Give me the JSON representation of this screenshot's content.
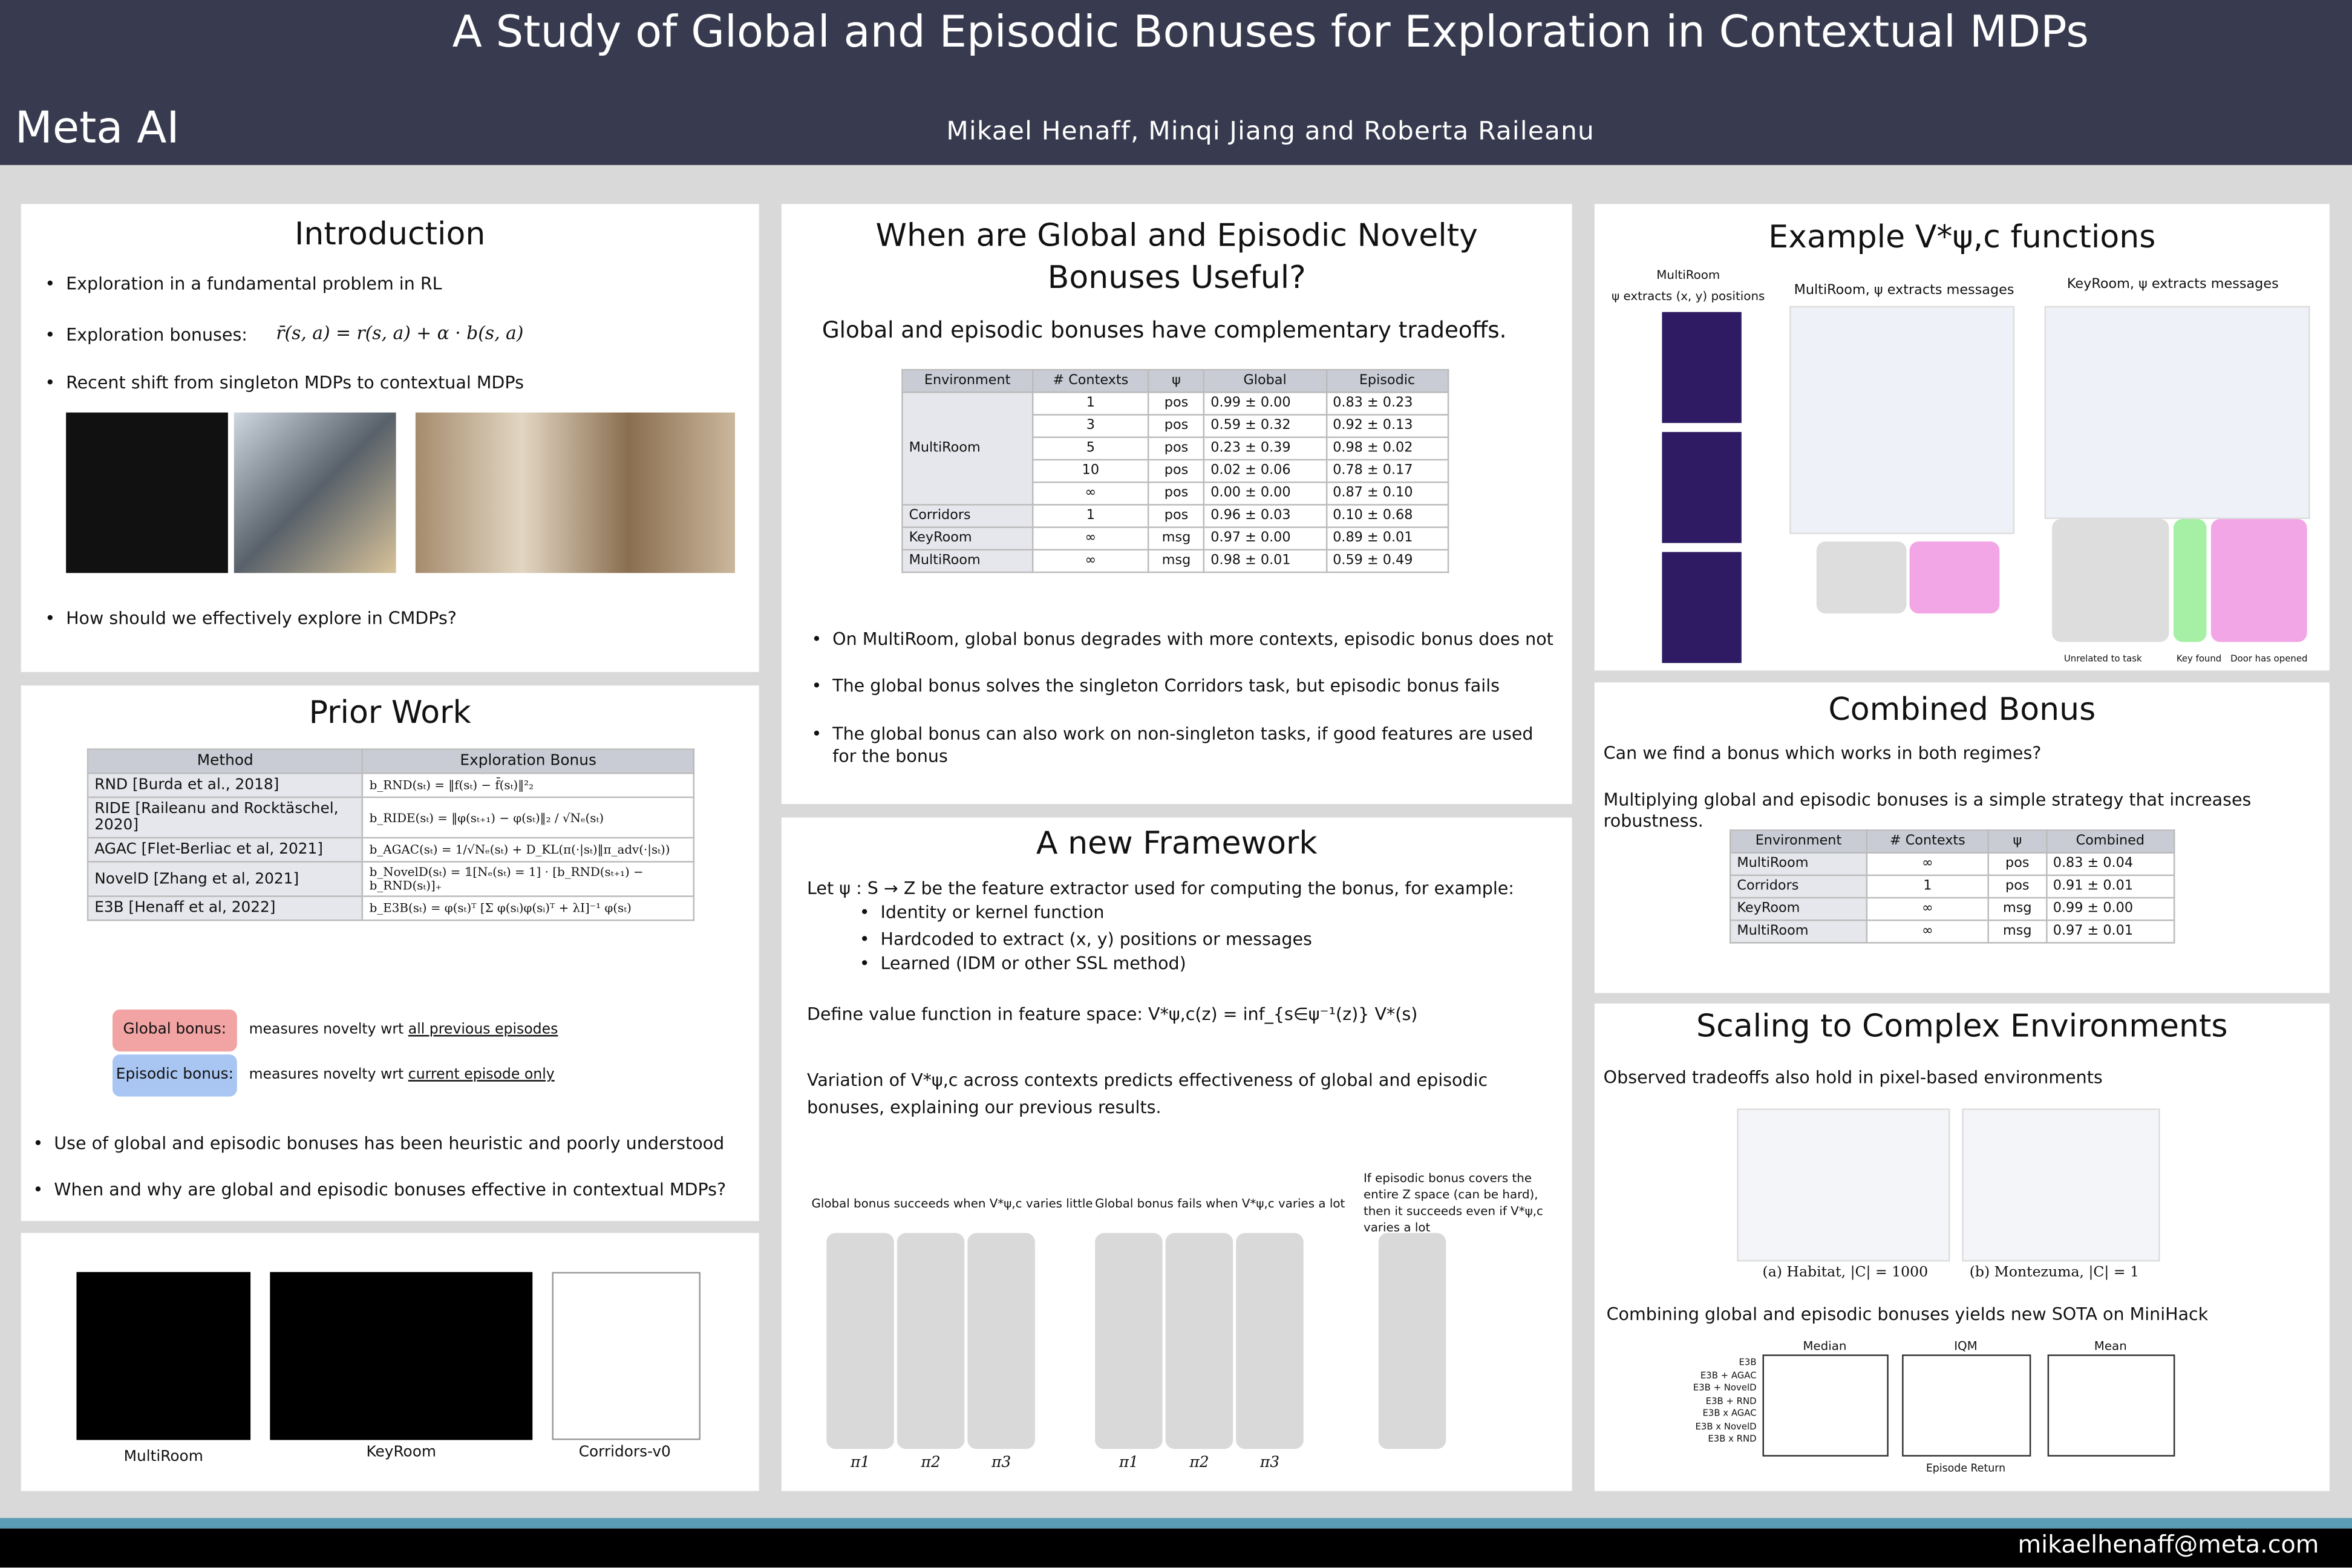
{
  "header": {
    "title": "A Study of Global and Episodic Bonuses for Exploration in Contextual MDPs",
    "logo": "Meta AI",
    "authors": "Mikael Henaff, Minqi Jiang and Roberta Raileanu"
  },
  "introduction": {
    "title": "Introduction",
    "bullets": [
      "Exploration in a fundamental problem in RL",
      "Exploration bonuses:",
      "Recent shift from singleton MDPs to contextual MDPs"
    ],
    "bonus_formula": "r̄(s, a) = r(s, a) + α · b(s, a)",
    "question": "How should we effectively explore in CMDPs?"
  },
  "prior_work": {
    "title": "Prior Work",
    "table": {
      "header": [
        "Method",
        "Exploration Bonus"
      ],
      "rows": [
        [
          "RND [Burda et al., 2018]",
          "b_RND(sₜ) = ‖f(sₜ) − f̄(sₜ)‖²₂"
        ],
        [
          "RIDE [Raileanu and Rocktäschel, 2020]",
          "b_RIDE(sₜ) = ‖φ(sₜ₊₁) − φ(sₜ)‖₂ / √Nₑ(sₜ)"
        ],
        [
          "AGAC [Flet-Berliac et al, 2021]",
          "b_AGAC(sₜ) = 1/√Nₑ(sₜ) + D_KL(π(·|sₜ)‖π_adv(·|sₜ))"
        ],
        [
          "NovelD [Zhang et al, 2021]",
          "b_NovelD(sₜ) = 𝟙[Nₑ(sₜ) = 1] · [b_RND(sₜ₊₁) − b_RND(sₜ)]₊"
        ],
        [
          "E3B [Henaff et al, 2022]",
          "b_E3B(sₜ) = φ(sₜ)ᵀ [Σ φ(sᵢ)φ(sᵢ)ᵀ + λI]⁻¹ φ(sₜ)"
        ]
      ]
    },
    "legend": [
      {
        "label": "Global bonus:",
        "text": "measures novelty wrt",
        "emphasis": "all previous episodes"
      },
      {
        "label": "Episodic bonus:",
        "text": "measures novelty wrt",
        "emphasis": "current episode only"
      }
    ],
    "bullets": [
      "Use of global and episodic bonuses has been heuristic and poorly understood",
      "When and why are global and episodic bonuses effective in contextual MDPs?"
    ]
  },
  "environments": {
    "labels": [
      "MultiRoom",
      "KeyRoom",
      "Corridors-v0"
    ]
  },
  "when_useful": {
    "title": "When are Global and Episodic Novelty Bonuses Useful?",
    "subtitle": "Global and episodic bonuses have complementary tradeoffs.",
    "table": {
      "header": [
        "Environment",
        "# Contexts",
        "ψ",
        "Global",
        "Episodic"
      ],
      "groups": [
        {
          "environment": "MultiRoom",
          "rows": [
            [
              "1",
              "pos",
              "0.99 ± 0.00",
              "0.83 ± 0.23"
            ],
            [
              "3",
              "pos",
              "0.59 ± 0.32",
              "0.92 ± 0.13"
            ],
            [
              "5",
              "pos",
              "0.23 ± 0.39",
              "0.98 ± 0.02"
            ],
            [
              "10",
              "pos",
              "0.02 ± 0.06",
              "0.78 ± 0.17"
            ],
            [
              "∞",
              "pos",
              "0.00 ± 0.00",
              "0.87 ± 0.10"
            ]
          ]
        },
        {
          "environment": "Corridors",
          "rows": [
            [
              "1",
              "pos",
              "0.96 ± 0.03",
              "0.10 ± 0.68"
            ]
          ]
        },
        {
          "environment": "KeyRoom",
          "rows": [
            [
              "∞",
              "msg",
              "0.97 ± 0.00",
              "0.89 ± 0.01"
            ]
          ]
        },
        {
          "environment": "MultiRoom",
          "rows": [
            [
              "∞",
              "msg",
              "0.98 ± 0.01",
              "0.59 ± 0.49"
            ]
          ]
        }
      ]
    },
    "bullets": [
      "On MultiRoom, global bonus degrades with more contexts, episodic bonus does not",
      "The global bonus solves the singleton Corridors task, but episodic bonus fails",
      "The global bonus can also work on non-singleton tasks, if good features are used for the bonus"
    ]
  },
  "framework": {
    "title": "A new Framework",
    "intro": "Let ψ : S → Z be the feature extractor used for computing the bonus, for example:",
    "examples": [
      "Identity or kernel function",
      "Hardcoded to extract (x, y) positions or messages",
      "Learned (IDM or other SSL method)"
    ],
    "definition": "Define value function in feature space:   V*ψ,c(z) = inf_{s∈ψ⁻¹(z)} V*(s)",
    "variation": "Variation of V*ψ,c across contexts predicts effectiveness of global and episodic bonuses, explaining our previous results.",
    "captions": [
      "Global bonus succeeds when V*ψ,c varies little",
      "Global bonus fails when V*ψ,c varies a lot",
      "If episodic bonus covers the entire Z space (can be hard), then it succeeds even if V*ψ,c varies a lot"
    ],
    "policies": [
      "π1",
      "π2",
      "π3"
    ]
  },
  "example": {
    "title": "Example V*ψ,c functions",
    "panels": [
      "MultiRoom",
      "ψ extracts (x, y) positions",
      "MultiRoom, ψ extracts messages",
      "KeyRoom, ψ extracts messages"
    ],
    "annotations": [
      "Unrelated to task",
      "Key found",
      "Door has opened"
    ]
  },
  "combined": {
    "title": "Combined Bonus",
    "texts": [
      "Can we find a bonus which works in both regimes?",
      "Multiplying global and episodic bonuses is a simple strategy that increases robustness."
    ],
    "table": {
      "header": [
        "Environment",
        "# Contexts",
        "ψ",
        "Combined"
      ],
      "rows": [
        [
          "MultiRoom",
          "∞",
          "pos",
          "0.83 ± 0.04"
        ],
        [
          "Corridors",
          "1",
          "pos",
          "0.91 ± 0.01"
        ],
        [
          "KeyRoom",
          "∞",
          "msg",
          "0.99 ± 0.00"
        ],
        [
          "MultiRoom",
          "∞",
          "msg",
          "0.97 ± 0.01"
        ]
      ]
    }
  },
  "scaling": {
    "title": "Scaling to Complex Environments",
    "text": "Observed tradeoffs also hold in pixel-based environments",
    "captions": [
      "(a) Habitat, |C| = 1000",
      "(b) Montezuma, |C| = 1"
    ],
    "sota": "Combining global and episodic bonuses yields new SOTA on MiniHack",
    "plot_titles": [
      "Median",
      "IQM",
      "Mean"
    ],
    "methods": [
      "E3B",
      "E3B + AGAC",
      "E3B + NovelD",
      "E3B + RND",
      "E3B x AGAC",
      "E3B x NovelD",
      "E3B x RND"
    ],
    "x_label": "Episode Return"
  },
  "footer": {
    "email": "mikaelhenaff@meta.com"
  }
}
